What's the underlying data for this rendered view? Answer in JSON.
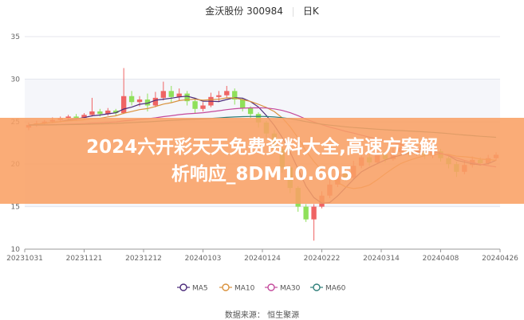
{
  "header": {
    "stock": "金沃股份 300984",
    "period": "日K"
  },
  "banner": {
    "line1": "2024六开彩天天免费资料大全,高速方案解",
    "line2": "析响应_8DM10.605"
  },
  "source": "数据来源： 恒生聚源",
  "colors": {
    "up": "#ef6464",
    "down": "#8fe05a",
    "MA5": "#4b2a7a",
    "MA10": "#d9913c",
    "MA30": "#c44a9c",
    "MA60": "#2f7f7a"
  },
  "chart_data": {
    "type": "candlestick",
    "ylim": [
      10,
      35
    ],
    "yticks": [
      10,
      15,
      20,
      25,
      30,
      35
    ],
    "xtick_labels": [
      "20231031",
      "20231121",
      "20231212",
      "20240103",
      "20240124",
      "20240222",
      "20240314",
      "20240408",
      "20240426"
    ],
    "legend": [
      "MA5",
      "MA10",
      "MA30",
      "MA60"
    ],
    "legend_placement": "bottom",
    "grid": true,
    "ohlc_order": "open, close, low, high",
    "candles": [
      [
        24.3,
        24.6,
        24.0,
        24.9
      ],
      [
        24.6,
        24.8,
        24.4,
        25.1
      ],
      [
        24.8,
        25.0,
        24.6,
        25.2
      ],
      [
        25.0,
        25.2,
        24.8,
        25.5
      ],
      [
        25.2,
        25.4,
        25.0,
        25.6
      ],
      [
        25.4,
        25.6,
        25.2,
        25.8
      ],
      [
        25.6,
        25.4,
        25.2,
        25.9
      ],
      [
        25.4,
        25.8,
        25.3,
        26.0
      ],
      [
        25.8,
        26.2,
        25.6,
        27.8
      ],
      [
        26.2,
        25.9,
        25.6,
        26.5
      ],
      [
        25.9,
        26.3,
        25.7,
        26.6
      ],
      [
        26.3,
        26.0,
        25.7,
        26.5
      ],
      [
        26.0,
        28.0,
        25.9,
        31.3
      ],
      [
        28.0,
        27.3,
        26.9,
        28.6
      ],
      [
        27.3,
        27.6,
        26.8,
        28.0
      ],
      [
        27.6,
        26.9,
        26.2,
        28.3
      ],
      [
        26.9,
        27.8,
        26.7,
        28.5
      ],
      [
        27.8,
        28.6,
        27.5,
        29.7
      ],
      [
        28.6,
        27.9,
        27.2,
        29.2
      ],
      [
        27.9,
        28.3,
        27.5,
        28.9
      ],
      [
        28.3,
        27.4,
        26.9,
        28.6
      ],
      [
        27.4,
        26.5,
        26.0,
        27.8
      ],
      [
        26.5,
        26.9,
        26.2,
        27.3
      ],
      [
        26.9,
        27.9,
        26.7,
        28.4
      ],
      [
        27.9,
        28.1,
        27.3,
        28.6
      ],
      [
        28.1,
        28.6,
        27.8,
        29.2
      ],
      [
        28.6,
        27.6,
        27.0,
        28.9
      ],
      [
        27.6,
        26.6,
        26.2,
        27.8
      ],
      [
        26.6,
        25.9,
        25.4,
        26.8
      ],
      [
        25.9,
        24.9,
        24.3,
        26.1
      ],
      [
        24.9,
        23.6,
        23.1,
        25.1
      ],
      [
        23.6,
        21.8,
        21.2,
        24.0
      ],
      [
        21.8,
        19.6,
        19.0,
        22.0
      ],
      [
        19.6,
        17.2,
        16.6,
        19.8
      ],
      [
        17.2,
        15.0,
        14.4,
        17.4
      ],
      [
        15.0,
        13.5,
        13.2,
        15.3
      ],
      [
        13.5,
        15.0,
        11.0,
        15.3
      ],
      [
        15.0,
        16.3,
        14.8,
        16.8
      ],
      [
        16.3,
        17.6,
        16.0,
        18.2
      ],
      [
        17.6,
        18.9,
        17.3,
        19.5
      ],
      [
        18.9,
        18.4,
        18.0,
        19.3
      ],
      [
        18.4,
        19.8,
        18.2,
        20.4
      ],
      [
        19.8,
        20.8,
        19.5,
        21.3
      ],
      [
        20.8,
        20.2,
        19.8,
        21.2
      ],
      [
        20.2,
        21.1,
        20.0,
        21.6
      ],
      [
        21.1,
        20.6,
        20.2,
        21.5
      ],
      [
        20.6,
        21.4,
        20.4,
        21.9
      ],
      [
        21.4,
        22.0,
        21.1,
        22.5
      ],
      [
        22.0,
        21.3,
        20.9,
        22.3
      ],
      [
        21.3,
        21.8,
        21.0,
        22.2
      ],
      [
        21.8,
        21.0,
        20.6,
        22.0
      ],
      [
        21.0,
        21.5,
        20.7,
        21.9
      ],
      [
        21.5,
        20.7,
        20.3,
        21.8
      ],
      [
        20.7,
        20.0,
        19.5,
        21.0
      ],
      [
        20.0,
        19.1,
        18.5,
        20.3
      ],
      [
        19.1,
        19.9,
        18.8,
        20.4
      ],
      [
        19.9,
        20.5,
        19.6,
        20.9
      ],
      [
        20.5,
        20.1,
        19.8,
        20.8
      ],
      [
        20.1,
        20.7,
        19.9,
        21.1
      ],
      [
        20.7,
        21.1,
        20.4,
        21.4
      ]
    ]
  }
}
